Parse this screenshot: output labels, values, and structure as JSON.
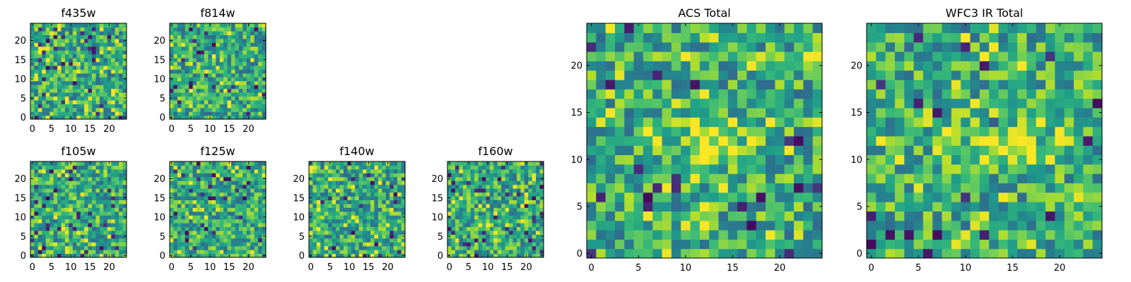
{
  "chart_data": [
    {
      "type": "heatmap",
      "title": "f435w",
      "colormap": "viridis",
      "xlim": [
        0,
        24
      ],
      "ylim": [
        0,
        24
      ],
      "grid_size": 25,
      "xticks": [
        0,
        5,
        10,
        15,
        20
      ],
      "yticks": [
        0,
        5,
        10,
        15,
        20
      ]
    },
    {
      "type": "heatmap",
      "title": "f814w",
      "colormap": "viridis",
      "xlim": [
        0,
        24
      ],
      "ylim": [
        0,
        24
      ],
      "grid_size": 25,
      "xticks": [
        0,
        5,
        10,
        15,
        20
      ],
      "yticks": [
        0,
        5,
        10,
        15,
        20
      ]
    },
    {
      "type": "heatmap",
      "title": "f105w",
      "colormap": "viridis",
      "xlim": [
        0,
        24
      ],
      "ylim": [
        0,
        24
      ],
      "grid_size": 25,
      "xticks": [
        0,
        5,
        10,
        15,
        20
      ],
      "yticks": [
        0,
        5,
        10,
        15,
        20
      ]
    },
    {
      "type": "heatmap",
      "title": "f125w",
      "colormap": "viridis",
      "xlim": [
        0,
        24
      ],
      "ylim": [
        0,
        24
      ],
      "grid_size": 25,
      "xticks": [
        0,
        5,
        10,
        15,
        20
      ],
      "yticks": [
        0,
        5,
        10,
        15,
        20
      ]
    },
    {
      "type": "heatmap",
      "title": "f140w",
      "colormap": "viridis",
      "xlim": [
        0,
        24
      ],
      "ylim": [
        0,
        24
      ],
      "grid_size": 25,
      "xticks": [
        0,
        5,
        10,
        15,
        20
      ],
      "yticks": [
        0,
        5,
        10,
        15,
        20
      ]
    },
    {
      "type": "heatmap",
      "title": "f160w",
      "colormap": "viridis",
      "xlim": [
        0,
        24
      ],
      "ylim": [
        0,
        24
      ],
      "grid_size": 25,
      "xticks": [
        0,
        5,
        10,
        15,
        20
      ],
      "yticks": [
        0,
        5,
        10,
        15,
        20
      ]
    },
    {
      "type": "heatmap",
      "title": "ACS Total",
      "colormap": "viridis",
      "xlim": [
        0,
        24
      ],
      "ylim": [
        0,
        24
      ],
      "grid_size": 25,
      "xticks": [
        0,
        5,
        10,
        15,
        20
      ],
      "yticks": [
        0,
        5,
        10,
        15,
        20
      ]
    },
    {
      "type": "heatmap",
      "title": "WFC3 IR Total",
      "colormap": "viridis",
      "xlim": [
        0,
        24
      ],
      "ylim": [
        0,
        24
      ],
      "grid_size": 25,
      "xticks": [
        0,
        5,
        10,
        15,
        20
      ],
      "yticks": [
        0,
        5,
        10,
        15,
        20
      ]
    }
  ]
}
